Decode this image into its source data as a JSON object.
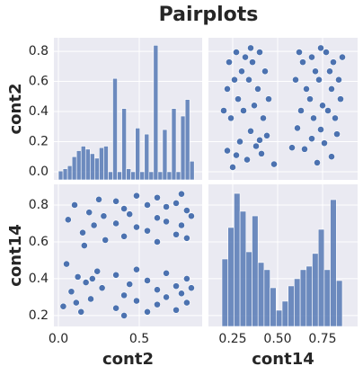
{
  "title": "Pairplots",
  "chart_data": [
    {
      "type": "histogram",
      "ylabel": "cont2",
      "color": "#4c72b0",
      "xlim": [
        -0.028,
        0.889
      ],
      "ylim": [
        -0.054,
        0.89
      ],
      "xticks": [
        0,
        0.5
      ],
      "yticks": [
        {
          "value": 0,
          "label": "0.0"
        },
        0.2,
        0.4,
        0.6,
        0.8
      ],
      "bins": [
        0,
        0.028,
        0.056,
        0.084,
        0.112,
        0.14,
        0.168,
        0.196,
        0.224,
        0.252,
        0.28,
        0.308,
        0.336,
        0.364,
        0.392,
        0.42,
        0.448,
        0.476,
        0.504,
        0.532,
        0.56,
        0.588,
        0.616,
        0.644,
        0.672,
        0.7,
        0.728,
        0.756,
        0.784,
        0.812,
        0.84
      ],
      "values": [
        0.005,
        0.02,
        0.04,
        0.1,
        0.14,
        0.17,
        0.15,
        0.12,
        0.09,
        0.16,
        0.17,
        0,
        0.62,
        0,
        0.42,
        0.02,
        0,
        0.29,
        0,
        0.25,
        0,
        0.84,
        0,
        0.28,
        0,
        0.42,
        0,
        0.37,
        0.48,
        0.07
      ]
    },
    {
      "type": "scatter",
      "color": "#4c72b0",
      "xlim": [
        0.115,
        0.945
      ],
      "ylim": [
        -0.054,
        0.89
      ],
      "xticks": [
        0.25,
        0.5,
        0.75
      ],
      "yticks": [
        0,
        0.2,
        0.4,
        0.6,
        0.8
      ],
      "x": [
        0.25,
        0.72,
        0.33,
        0.8,
        0.41,
        0.22,
        0.65,
        0.38,
        0.76,
        0.29,
        0.69,
        0.44,
        0.83,
        0.35,
        0.61,
        0.48,
        0.27,
        0.58,
        0.4,
        0.74,
        0.24,
        0.42,
        0.7,
        0.82,
        0.31,
        0.63,
        0.78,
        0.2,
        0.37,
        0.75,
        0.28,
        0.45,
        0.68,
        0.85,
        0.22,
        0.39,
        0.66,
        0.8,
        0.26,
        0.34,
        0.6,
        0.73,
        0.84,
        0.3,
        0.43,
        0.71,
        0.79,
        0.23,
        0.36,
        0.64,
        0.81,
        0.32,
        0.69,
        0.86,
        0.27,
        0.4,
        0.62,
        0.77,
        0.35,
        0.74
      ],
      "y": [
        0.03,
        0.06,
        0.08,
        0.1,
        0.12,
        0.14,
        0.15,
        0.17,
        0.19,
        0.2,
        0.22,
        0.24,
        0.25,
        0.27,
        0.29,
        0.05,
        0.11,
        0.16,
        0.21,
        0.28,
        0.356,
        0.356,
        0.356,
        0.356,
        0.406,
        0.406,
        0.406,
        0.406,
        0.44,
        0.44,
        0.483,
        0.483,
        0.483,
        0.483,
        0.55,
        0.55,
        0.55,
        0.55,
        0.611,
        0.611,
        0.611,
        0.611,
        0.611,
        0.667,
        0.667,
        0.667,
        0.667,
        0.728,
        0.728,
        0.728,
        0.728,
        0.761,
        0.761,
        0.761,
        0.794,
        0.794,
        0.794,
        0.794,
        0.822,
        0.822
      ]
    },
    {
      "type": "scatter",
      "xlabel": "cont2",
      "ylabel": "cont14",
      "color": "#4c72b0",
      "xlim": [
        -0.028,
        0.889
      ],
      "ylim": [
        0.141,
        0.912
      ],
      "xticks": [
        {
          "value": 0,
          "label": "0.0"
        },
        0.5
      ],
      "yticks": [
        0.2,
        0.4,
        0.6,
        0.8
      ],
      "x": [
        0.03,
        0.06,
        0.08,
        0.1,
        0.12,
        0.14,
        0.15,
        0.17,
        0.19,
        0.2,
        0.22,
        0.24,
        0.25,
        0.27,
        0.29,
        0.05,
        0.11,
        0.16,
        0.21,
        0.28,
        0.356,
        0.356,
        0.356,
        0.356,
        0.406,
        0.406,
        0.406,
        0.406,
        0.44,
        0.44,
        0.483,
        0.483,
        0.483,
        0.483,
        0.55,
        0.55,
        0.55,
        0.55,
        0.611,
        0.611,
        0.611,
        0.611,
        0.611,
        0.667,
        0.667,
        0.667,
        0.667,
        0.728,
        0.728,
        0.728,
        0.728,
        0.761,
        0.761,
        0.761,
        0.794,
        0.794,
        0.794,
        0.794,
        0.822,
        0.822
      ],
      "y": [
        0.25,
        0.72,
        0.33,
        0.8,
        0.41,
        0.22,
        0.65,
        0.38,
        0.76,
        0.29,
        0.69,
        0.44,
        0.83,
        0.35,
        0.61,
        0.48,
        0.27,
        0.58,
        0.4,
        0.74,
        0.24,
        0.42,
        0.7,
        0.82,
        0.31,
        0.63,
        0.78,
        0.2,
        0.37,
        0.75,
        0.28,
        0.45,
        0.68,
        0.85,
        0.22,
        0.39,
        0.66,
        0.8,
        0.26,
        0.34,
        0.6,
        0.73,
        0.84,
        0.3,
        0.43,
        0.71,
        0.79,
        0.23,
        0.36,
        0.64,
        0.81,
        0.32,
        0.69,
        0.86,
        0.27,
        0.4,
        0.62,
        0.77,
        0.35,
        0.74
      ]
    },
    {
      "type": "histogram",
      "xlabel": "cont14",
      "color": "#4c72b0",
      "xlim": [
        0.115,
        0.945
      ],
      "ylim": [
        0.141,
        0.912
      ],
      "xticks": [
        0.25,
        {
          "value": 0.5,
          "label": "0.50"
        },
        0.75
      ],
      "yticks": [
        0.2,
        0.4,
        0.6,
        0.8
      ],
      "bins": [
        0.19,
        0.2235,
        0.257,
        0.2905,
        0.324,
        0.3575,
        0.391,
        0.4245,
        0.458,
        0.4915,
        0.525,
        0.5585,
        0.592,
        0.6255,
        0.659,
        0.6925,
        0.726,
        0.7595,
        0.793,
        0.8265,
        0.86
      ],
      "values": [
        0.507,
        0.678,
        0.863,
        0.766,
        0.546,
        0.741,
        0.488,
        0.449,
        0.351,
        0.229,
        0.278,
        0.361,
        0.4,
        0.449,
        0.468,
        0.537,
        0.668,
        0.449,
        0.829,
        0.39
      ]
    }
  ]
}
